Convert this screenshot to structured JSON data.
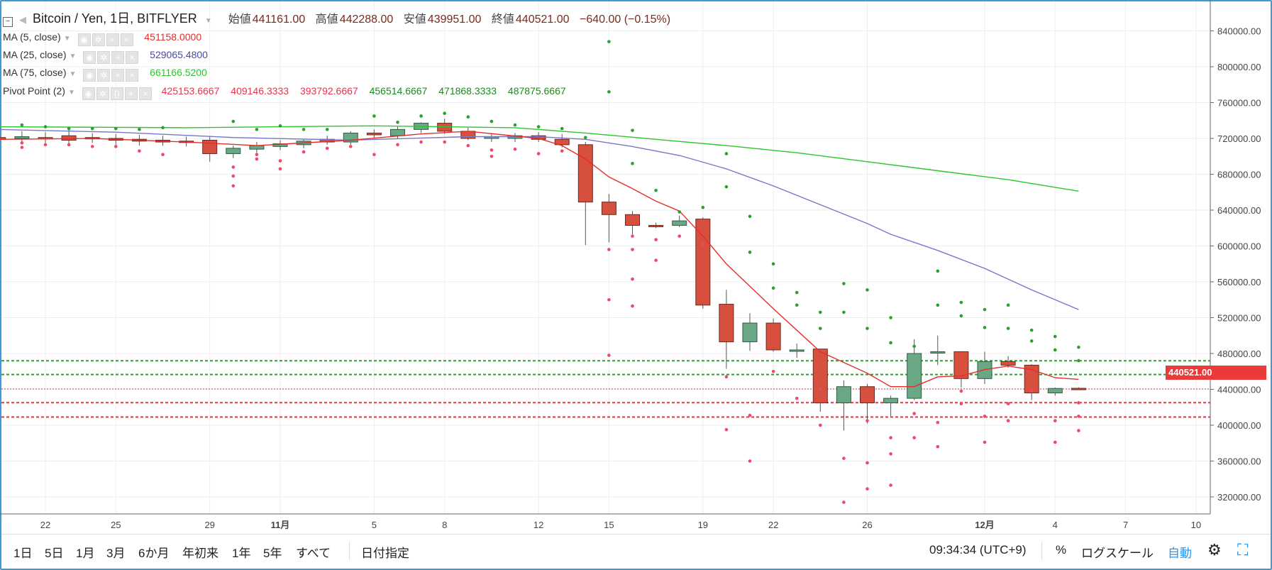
{
  "header": {
    "symbol": "Bitcoin / Yen, 1日, BITFLYER",
    "open_label": "始値",
    "open_value": "441161.00",
    "high_label": "高値",
    "high_value": "442288.00",
    "low_label": "安値",
    "low_value": "439951.00",
    "close_label": "終値",
    "close_value": "440521.00",
    "change": "−640.00 (−0.15%)"
  },
  "indicators": {
    "ma5": {
      "name": "MA (5, close)",
      "value": "451158.0000",
      "color": "#e82c2c"
    },
    "ma25": {
      "name": "MA (25, close)",
      "value": "529065.4800",
      "color": "#4a49a8"
    },
    "ma75": {
      "name": "MA (75, close)",
      "value": "661166.5200",
      "color": "#2cc62c"
    },
    "pivot": {
      "name": "Pivot Point (2)",
      "values": [
        "425153.6667",
        "409146.3333",
        "393792.6667",
        "456514.6667",
        "471868.3333",
        "487875.6667"
      ],
      "colors": [
        "#e8334a",
        "#e8334a",
        "#e8334a",
        "#1c8a1c",
        "#1c8a1c",
        "#1c8a1c"
      ]
    }
  },
  "chart_data": {
    "type": "candlestick",
    "title": "Bitcoin / Yen, 1日, BITFLYER",
    "y_ticks": [
      "840000.00",
      "800000.00",
      "760000.00",
      "720000.00",
      "680000.00",
      "640000.00",
      "600000.00",
      "560000.00",
      "520000.00",
      "480000.00",
      "440000.00",
      "400000.00",
      "360000.00",
      "320000.00"
    ],
    "y_tick_values": [
      840000,
      800000,
      760000,
      720000,
      680000,
      640000,
      600000,
      560000,
      520000,
      480000,
      440000,
      400000,
      360000,
      320000
    ],
    "ylim": [
      290000,
      860000
    ],
    "x_ticks": [
      "22",
      "25",
      "29",
      "11月",
      "5",
      "8",
      "12",
      "15",
      "19",
      "22",
      "26",
      "12月",
      "4",
      "7",
      "10"
    ],
    "x_tick_days": [
      22,
      25,
      29,
      32,
      36,
      39,
      43,
      46,
      50,
      53,
      57,
      62,
      65,
      68,
      71
    ],
    "last_price": "440521.00",
    "candles": [
      {
        "day": 20,
        "o": 721000,
        "h": 726000,
        "l": 717000,
        "c": 719000
      },
      {
        "day": 21,
        "o": 720000,
        "h": 728000,
        "l": 716000,
        "c": 722000
      },
      {
        "day": 22,
        "o": 721000,
        "h": 727000,
        "l": 715000,
        "c": 720000
      },
      {
        "day": 23,
        "o": 723000,
        "h": 730000,
        "l": 714000,
        "c": 718000
      },
      {
        "day": 24,
        "o": 721000,
        "h": 726000,
        "l": 715000,
        "c": 720000
      },
      {
        "day": 25,
        "o": 720000,
        "h": 725000,
        "l": 713000,
        "c": 718000
      },
      {
        "day": 26,
        "o": 719000,
        "h": 724000,
        "l": 712000,
        "c": 717000
      },
      {
        "day": 27,
        "o": 718000,
        "h": 723000,
        "l": 712000,
        "c": 716000
      },
      {
        "day": 28,
        "o": 717000,
        "h": 722000,
        "l": 711000,
        "c": 716000
      },
      {
        "day": 29,
        "o": 718000,
        "h": 722000,
        "l": 694000,
        "c": 703000
      },
      {
        "day": 30,
        "o": 703000,
        "h": 712000,
        "l": 698000,
        "c": 709000
      },
      {
        "day": 31,
        "o": 708000,
        "h": 716000,
        "l": 704000,
        "c": 712000
      },
      {
        "day": 32,
        "o": 711000,
        "h": 718000,
        "l": 707000,
        "c": 714000
      },
      {
        "day": 33,
        "o": 713000,
        "h": 719000,
        "l": 709000,
        "c": 717000
      },
      {
        "day": 34,
        "o": 719000,
        "h": 723000,
        "l": 713000,
        "c": 716000
      },
      {
        "day": 35,
        "o": 716000,
        "h": 728000,
        "l": 713000,
        "c": 726000
      },
      {
        "day": 36,
        "o": 726000,
        "h": 730000,
        "l": 721000,
        "c": 724000
      },
      {
        "day": 37,
        "o": 723000,
        "h": 733000,
        "l": 720000,
        "c": 730000
      },
      {
        "day": 38,
        "o": 730000,
        "h": 738000,
        "l": 726000,
        "c": 737000
      },
      {
        "day": 39,
        "o": 737000,
        "h": 742000,
        "l": 725000,
        "c": 728000
      },
      {
        "day": 40,
        "o": 728000,
        "h": 732000,
        "l": 718000,
        "c": 720000
      },
      {
        "day": 41,
        "o": 720000,
        "h": 726000,
        "l": 716000,
        "c": 722000
      },
      {
        "day": 42,
        "o": 720000,
        "h": 726000,
        "l": 716000,
        "c": 723000
      },
      {
        "day": 43,
        "o": 723000,
        "h": 727000,
        "l": 716000,
        "c": 719000
      },
      {
        "day": 44,
        "o": 719000,
        "h": 725000,
        "l": 710000,
        "c": 713000
      },
      {
        "day": 45,
        "o": 713000,
        "h": 716000,
        "l": 601000,
        "c": 649000
      },
      {
        "day": 46,
        "o": 649000,
        "h": 658000,
        "l": 604000,
        "c": 635000
      },
      {
        "day": 47,
        "o": 635000,
        "h": 639000,
        "l": 613000,
        "c": 623000
      },
      {
        "day": 48,
        "o": 623000,
        "h": 626000,
        "l": 620000,
        "c": 622000
      },
      {
        "day": 49,
        "o": 623000,
        "h": 634000,
        "l": 621000,
        "c": 628000
      },
      {
        "day": 50,
        "o": 630000,
        "h": 632000,
        "l": 530000,
        "c": 534000
      },
      {
        "day": 51,
        "o": 535000,
        "h": 551000,
        "l": 463000,
        "c": 493000
      },
      {
        "day": 52,
        "o": 493000,
        "h": 525000,
        "l": 483000,
        "c": 514000
      },
      {
        "day": 53,
        "o": 514000,
        "h": 519000,
        "l": 482000,
        "c": 484000
      },
      {
        "day": 54,
        "o": 484000,
        "h": 491000,
        "l": 475000,
        "c": 484000
      },
      {
        "day": 55,
        "o": 485000,
        "h": 485000,
        "l": 415000,
        "c": 425000
      },
      {
        "day": 56,
        "o": 425000,
        "h": 450000,
        "l": 394000,
        "c": 443000
      },
      {
        "day": 57,
        "o": 443000,
        "h": 446000,
        "l": 402000,
        "c": 425000
      },
      {
        "day": 58,
        "o": 425000,
        "h": 433000,
        "l": 410000,
        "c": 430000
      },
      {
        "day": 59,
        "o": 430000,
        "h": 496000,
        "l": 428000,
        "c": 480000
      },
      {
        "day": 60,
        "o": 481000,
        "h": 500000,
        "l": 467000,
        "c": 482000
      },
      {
        "day": 61,
        "o": 482000,
        "h": 482000,
        "l": 442000,
        "c": 452000
      },
      {
        "day": 62,
        "o": 452000,
        "h": 482000,
        "l": 446000,
        "c": 471000
      },
      {
        "day": 63,
        "o": 471000,
        "h": 477000,
        "l": 464000,
        "c": 467000
      },
      {
        "day": 64,
        "o": 467000,
        "h": 468000,
        "l": 428000,
        "c": 436000
      },
      {
        "day": 65,
        "o": 436000,
        "h": 442000,
        "l": 433000,
        "c": 441000
      },
      {
        "day": 66,
        "o": 441161,
        "h": 442288,
        "l": 439951,
        "c": 440521
      }
    ],
    "ma5": [
      [
        20,
        719000
      ],
      [
        24,
        720000
      ],
      [
        28,
        716000
      ],
      [
        31,
        712000
      ],
      [
        35,
        718000
      ],
      [
        38,
        725000
      ],
      [
        40,
        728000
      ],
      [
        43,
        720000
      ],
      [
        44,
        712000
      ],
      [
        45,
        697000
      ],
      [
        46,
        677000
      ],
      [
        47,
        664000
      ],
      [
        48,
        650000
      ],
      [
        49,
        639000
      ],
      [
        50,
        611000
      ],
      [
        51,
        580000
      ],
      [
        52,
        555000
      ],
      [
        53,
        530000
      ],
      [
        54,
        506000
      ],
      [
        55,
        482000
      ],
      [
        56,
        470000
      ],
      [
        57,
        458000
      ],
      [
        58,
        443000
      ],
      [
        59,
        443000
      ],
      [
        60,
        454000
      ],
      [
        61,
        455000
      ],
      [
        62,
        462000
      ],
      [
        63,
        466000
      ],
      [
        64,
        462000
      ],
      [
        65,
        453000
      ],
      [
        66,
        451158
      ]
    ],
    "ma25": [
      [
        20,
        730000
      ],
      [
        25,
        727000
      ],
      [
        30,
        721000
      ],
      [
        35,
        718000
      ],
      [
        40,
        722000
      ],
      [
        43,
        722000
      ],
      [
        45,
        719000
      ],
      [
        47,
        711000
      ],
      [
        49,
        701000
      ],
      [
        51,
        686000
      ],
      [
        53,
        667000
      ],
      [
        55,
        646000
      ],
      [
        57,
        625000
      ],
      [
        58,
        613000
      ],
      [
        60,
        595000
      ],
      [
        62,
        575000
      ],
      [
        64,
        551000
      ],
      [
        66,
        529065
      ]
    ],
    "ma75": [
      [
        20,
        733000
      ],
      [
        28,
        732000
      ],
      [
        36,
        734000
      ],
      [
        42,
        732000
      ],
      [
        45,
        726000
      ],
      [
        48,
        719000
      ],
      [
        51,
        712000
      ],
      [
        54,
        704000
      ],
      [
        57,
        694000
      ],
      [
        60,
        684000
      ],
      [
        63,
        674000
      ],
      [
        66,
        661166
      ]
    ],
    "pivot_levels": [
      {
        "value": 471868,
        "color": "#2ca02c"
      },
      {
        "value": 456515,
        "color": "#2ca02c"
      },
      {
        "value": 425154,
        "color": "#e8334a"
      },
      {
        "value": 409146,
        "color": "#e8334a"
      }
    ],
    "pivot_dots": {
      "green": [
        [
          21,
          735000
        ],
        [
          22,
          733000
        ],
        [
          23,
          731000
        ],
        [
          24,
          731000
        ],
        [
          25,
          731000
        ],
        [
          26,
          730000
        ],
        [
          27,
          732000
        ],
        [
          30,
          739000
        ],
        [
          31,
          730000
        ],
        [
          32,
          734000
        ],
        [
          33,
          730000
        ],
        [
          34,
          730000
        ],
        [
          36,
          745000
        ],
        [
          37,
          738000
        ],
        [
          38,
          745000
        ],
        [
          39,
          748000
        ],
        [
          40,
          744000
        ],
        [
          41,
          739000
        ],
        [
          42,
          735000
        ],
        [
          43,
          733000
        ],
        [
          44,
          731000
        ],
        [
          45,
          721000
        ],
        [
          46,
          828000
        ],
        [
          46,
          772000
        ],
        [
          47,
          729000
        ],
        [
          47,
          692000
        ],
        [
          48,
          662000
        ],
        [
          49,
          638000
        ],
        [
          50,
          643000
        ],
        [
          51,
          703000
        ],
        [
          51,
          666000
        ],
        [
          52,
          633000
        ],
        [
          52,
          593000
        ],
        [
          53,
          580000
        ],
        [
          53,
          553000
        ],
        [
          54,
          548000
        ],
        [
          54,
          534000
        ],
        [
          55,
          526000
        ],
        [
          55,
          508000
        ],
        [
          56,
          558000
        ],
        [
          56,
          526000
        ],
        [
          57,
          551000
        ],
        [
          57,
          508000
        ],
        [
          58,
          520000
        ],
        [
          58,
          492000
        ],
        [
          59,
          488000
        ],
        [
          60,
          572000
        ],
        [
          60,
          534000
        ],
        [
          61,
          537000
        ],
        [
          61,
          522000
        ],
        [
          62,
          529000
        ],
        [
          62,
          509000
        ],
        [
          63,
          534000
        ],
        [
          63,
          508000
        ],
        [
          64,
          506000
        ],
        [
          64,
          494000
        ],
        [
          65,
          499000
        ],
        [
          65,
          484000
        ],
        [
          66,
          487000
        ],
        [
          66,
          472000
        ]
      ],
      "red": [
        [
          21,
          715000
        ],
        [
          21,
          710000
        ],
        [
          22,
          713000
        ],
        [
          23,
          713000
        ],
        [
          24,
          711000
        ],
        [
          25,
          711000
        ],
        [
          26,
          706000
        ],
        [
          27,
          702000
        ],
        [
          30,
          688000
        ],
        [
          30,
          678000
        ],
        [
          30,
          667000
        ],
        [
          31,
          702000
        ],
        [
          31,
          697000
        ],
        [
          32,
          695000
        ],
        [
          32,
          686000
        ],
        [
          33,
          705000
        ],
        [
          34,
          709000
        ],
        [
          35,
          711000
        ],
        [
          36,
          702000
        ],
        [
          37,
          713000
        ],
        [
          38,
          716000
        ],
        [
          39,
          716000
        ],
        [
          40,
          712000
        ],
        [
          41,
          707000
        ],
        [
          41,
          700000
        ],
        [
          42,
          708000
        ],
        [
          43,
          703000
        ],
        [
          44,
          706000
        ],
        [
          46,
          596000
        ],
        [
          46,
          540000
        ],
        [
          46,
          478000
        ],
        [
          47,
          611000
        ],
        [
          47,
          596000
        ],
        [
          47,
          563000
        ],
        [
          47,
          533000
        ],
        [
          48,
          584000
        ],
        [
          48,
          607000
        ],
        [
          49,
          611000
        ],
        [
          50,
          602000
        ],
        [
          51,
          454000
        ],
        [
          51,
          395000
        ],
        [
          52,
          411000
        ],
        [
          52,
          360000
        ],
        [
          53,
          460000
        ],
        [
          54,
          430000
        ],
        [
          55,
          440000
        ],
        [
          55,
          400000
        ],
        [
          56,
          363000
        ],
        [
          56,
          314000
        ],
        [
          57,
          405000
        ],
        [
          57,
          358000
        ],
        [
          57,
          329000
        ],
        [
          58,
          386000
        ],
        [
          58,
          368000
        ],
        [
          58,
          333000
        ],
        [
          59,
          413000
        ],
        [
          59,
          386000
        ],
        [
          60,
          403000
        ],
        [
          60,
          376000
        ],
        [
          61,
          438000
        ],
        [
          61,
          424000
        ],
        [
          62,
          410000
        ],
        [
          62,
          381000
        ],
        [
          63,
          424000
        ],
        [
          63,
          405000
        ],
        [
          64,
          438000
        ],
        [
          65,
          405000
        ],
        [
          65,
          381000
        ],
        [
          66,
          425000
        ],
        [
          66,
          410000
        ],
        [
          66,
          394000
        ]
      ]
    }
  },
  "colors": {
    "up": "#4e9a6e",
    "down": "#d24b39",
    "up_fill": "#6aa785",
    "down_fill": "#d7503e",
    "border": "#3d9bd8",
    "grid": "#eeeeee"
  },
  "toolbar": {
    "ranges": [
      "1日",
      "5日",
      "1月",
      "3月",
      "6か月",
      "年初来",
      "1年",
      "5年",
      "すべて"
    ],
    "date_select": "日付指定",
    "clock": "09:34:34 (UTC+9)",
    "percent": "%",
    "log_scale": "ログスケール",
    "auto": "自動"
  }
}
